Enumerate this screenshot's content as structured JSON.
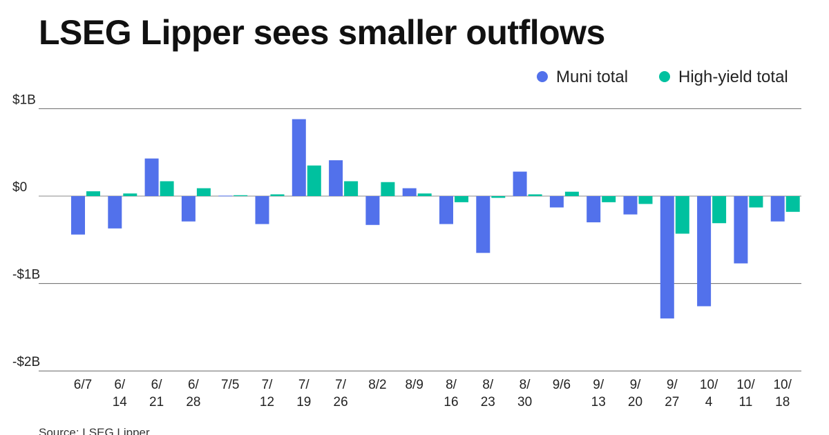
{
  "chart_data": {
    "type": "bar",
    "title": "LSEG Lipper sees smaller outflows",
    "source": "Source: LSEG Lipper",
    "xlabel": "",
    "ylabel": "",
    "ylim": [
      -2,
      1
    ],
    "unit": "$B",
    "yticks": [
      {
        "value": 1,
        "label": "$1B"
      },
      {
        "value": 0,
        "label": "$0"
      },
      {
        "value": -1,
        "label": "-$1B"
      },
      {
        "value": -2,
        "label": "-$2B"
      }
    ],
    "grid": true,
    "legend_position": "top-right",
    "categories": [
      "6/7",
      "6/14",
      "6/21",
      "6/28",
      "7/5",
      "7/12",
      "7/19",
      "7/26",
      "8/2",
      "8/9",
      "8/16",
      "8/23",
      "8/30",
      "9/6",
      "9/13",
      "9/20",
      "9/27",
      "10/4",
      "10/11",
      "10/18"
    ],
    "series": [
      {
        "name": "Muni total",
        "color": "#5271EB",
        "values": [
          -0.44,
          -0.37,
          0.43,
          -0.29,
          0.005,
          -0.32,
          0.88,
          0.41,
          -0.33,
          0.09,
          -0.32,
          -0.65,
          0.28,
          -0.13,
          -0.3,
          -0.21,
          -1.4,
          -1.26,
          -0.77,
          -0.29
        ]
      },
      {
        "name": "High-yield total",
        "color": "#00C19F",
        "values": [
          0.055,
          0.03,
          0.17,
          0.09,
          0.01,
          0.02,
          0.35,
          0.17,
          0.16,
          0.03,
          -0.07,
          -0.02,
          0.02,
          0.05,
          -0.07,
          -0.09,
          -0.43,
          -0.31,
          -0.13,
          -0.18
        ]
      }
    ]
  }
}
